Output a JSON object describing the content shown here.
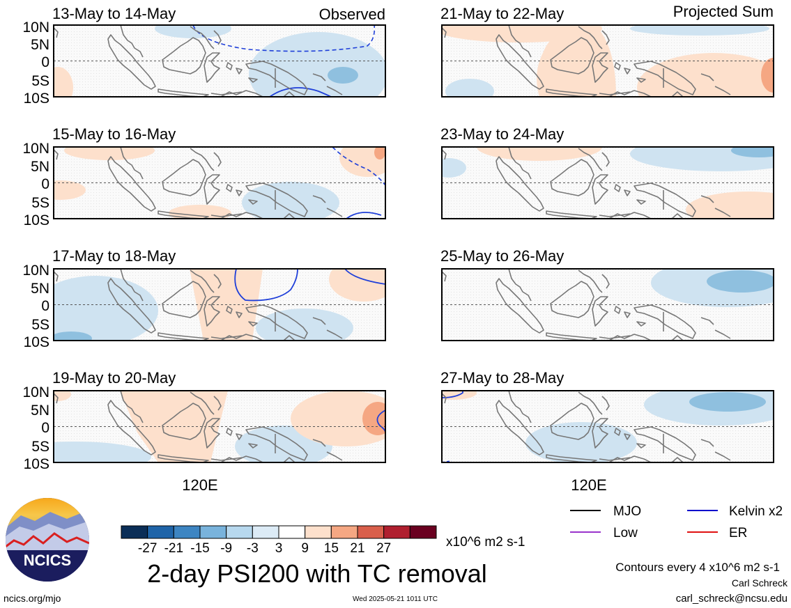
{
  "panels": [
    {
      "id": "p1",
      "date": "13-May to 14-May",
      "corner": "Observed"
    },
    {
      "id": "p2",
      "date": "15-May to 16-May",
      "corner": ""
    },
    {
      "id": "p3",
      "date": "17-May to 18-May",
      "corner": ""
    },
    {
      "id": "p4",
      "date": "19-May to 20-May",
      "corner": ""
    },
    {
      "id": "p5",
      "date": "21-May to 22-May",
      "corner": "Projected Sum"
    },
    {
      "id": "p6",
      "date": "23-May to 24-May",
      "corner": ""
    },
    {
      "id": "p7",
      "date": "25-May to 26-May",
      "corner": ""
    },
    {
      "id": "p8",
      "date": "27-May to 28-May",
      "corner": ""
    }
  ],
  "lat_labels": [
    "10N",
    "5N",
    "0",
    "5S",
    "10S"
  ],
  "lon_label": "120E",
  "colorbar": {
    "tick_labels": [
      "-27",
      "-21",
      "-15",
      "-9",
      "-3",
      "3",
      "9",
      "15",
      "21",
      "27"
    ],
    "colors": [
      "#0b2e57",
      "#1f64a8",
      "#3d85c2",
      "#79b3dc",
      "#b7d8ee",
      "#dcebf6",
      "#ffffff",
      "#fde0cc",
      "#f5a783",
      "#d95f4b",
      "#b01f2f",
      "#6a0020"
    ],
    "units": "x10^6 m2 s-1"
  },
  "title": "2-day PSI200 with TC removal",
  "legend": [
    {
      "label": "MJO",
      "color": "#000000"
    },
    {
      "label": "Kelvin x2",
      "color": "#0000cc"
    },
    {
      "label": "Low",
      "color": "#9933cc"
    },
    {
      "label": "ER",
      "color": "#e01010"
    }
  ],
  "contour_note": "Contours every 4 x10^6 m2 s-1",
  "author": "Carl Schreck",
  "email": "carl_schreck@ncsu.edu",
  "logo_text": "NCICS",
  "url": "ncics.org/mjo",
  "timestamp": "Wed 2025-05-21 1011 UTC"
}
